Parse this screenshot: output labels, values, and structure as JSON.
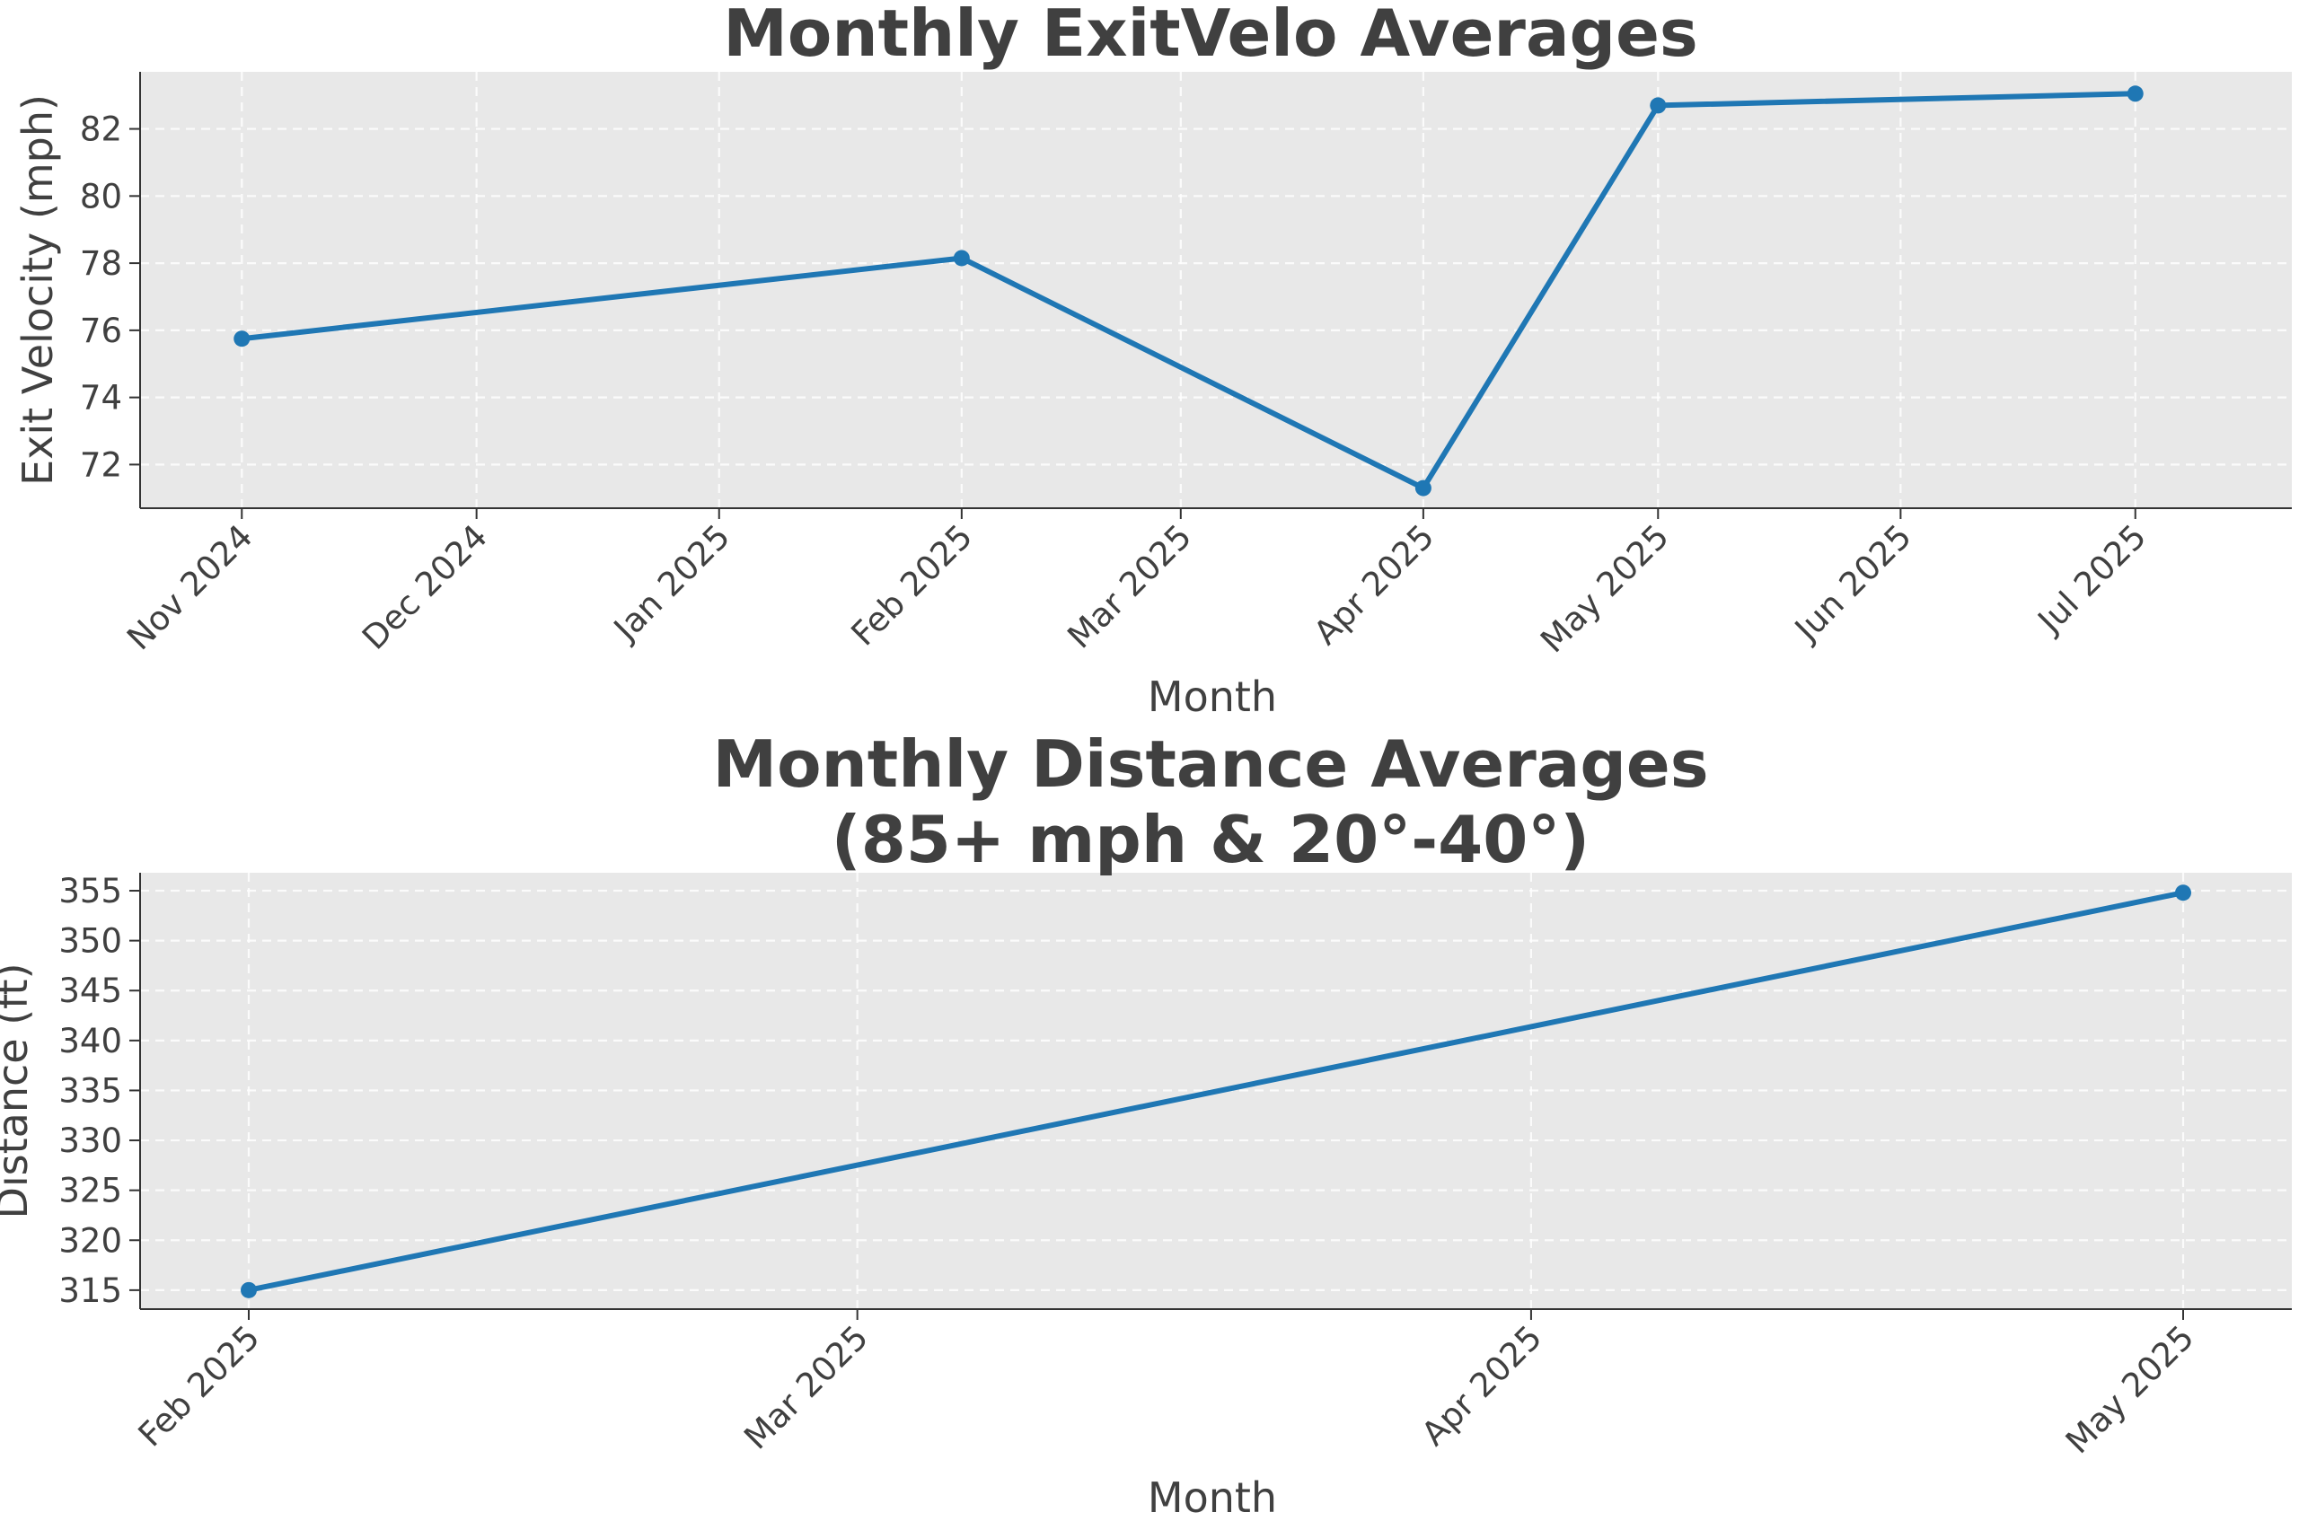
{
  "chart_data": [
    {
      "type": "line",
      "title": "Monthly ExitVelo Averages",
      "title_lines": [
        "Monthly ExitVelo Averages"
      ],
      "xlabel": "Month",
      "ylabel": "Exit Velocity (mph)",
      "x_ticks": [
        "Nov 2024",
        "Dec 2024",
        "Jan 2025",
        "Feb 2025",
        "Mar 2025",
        "Apr 2025",
        "May 2025",
        "Jun 2025",
        "Jul 2025"
      ],
      "x_tick_dates": [
        "2024-11-01",
        "2024-12-01",
        "2025-01-01",
        "2025-02-01",
        "2025-03-01",
        "2025-04-01",
        "2025-05-01",
        "2025-06-01",
        "2025-07-01"
      ],
      "y_ticks": [
        72,
        74,
        76,
        78,
        80,
        82
      ],
      "ylim": [
        70.7,
        83.7
      ],
      "xlim": [
        "2024-10-19",
        "2025-07-21"
      ],
      "grid": true,
      "series": [
        {
          "color": "#1f77b4",
          "x": [
            "2024-11-01",
            "2025-02-01",
            "2025-04-01",
            "2025-05-01",
            "2025-07-01"
          ],
          "y": [
            75.75,
            78.15,
            71.3,
            82.7,
            83.05
          ]
        }
      ]
    },
    {
      "type": "line",
      "title": "Monthly Distance Averages\n(85+ mph & 20°-40°)",
      "title_lines": [
        "Monthly Distance Averages",
        "(85+ mph & 20°-40°)"
      ],
      "xlabel": "Month",
      "ylabel": "Distance (ft)",
      "x_ticks": [
        "Feb 2025",
        "Mar 2025",
        "Apr 2025",
        "May 2025"
      ],
      "x_tick_dates": [
        "2025-02-01",
        "2025-03-01",
        "2025-04-01",
        "2025-05-01"
      ],
      "y_ticks": [
        315,
        320,
        325,
        330,
        335,
        340,
        345,
        350,
        355
      ],
      "ylim": [
        313.1,
        356.8
      ],
      "xlim": [
        "2025-01-27",
        "2025-05-06"
      ],
      "grid": true,
      "series": [
        {
          "color": "#1f77b4",
          "x": [
            "2025-02-01",
            "2025-05-01"
          ],
          "y": [
            315.0,
            354.8
          ]
        }
      ]
    }
  ],
  "colors": {
    "plot_background": "#e8e8e8",
    "grid": "#ffffff",
    "text": "#404040",
    "line": "#1f77b4"
  }
}
